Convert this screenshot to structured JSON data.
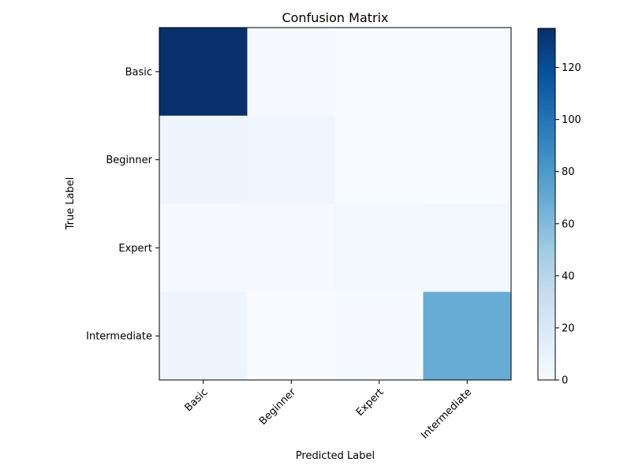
{
  "chart_data": {
    "type": "heatmap",
    "title": "Confusion Matrix",
    "xlabel": "Predicted Label",
    "ylabel": "True Label",
    "x_categories": [
      "Basic",
      "Beginner",
      "Expert",
      "Intermediate"
    ],
    "y_categories": [
      "Basic",
      "Beginner",
      "Expert",
      "Intermediate"
    ],
    "values": [
      [
        135,
        1,
        0,
        0
      ],
      [
        6,
        5,
        0,
        0
      ],
      [
        1,
        1,
        3,
        4
      ],
      [
        6,
        0,
        1,
        69
      ]
    ],
    "colorbar": {
      "range": [
        0,
        135
      ],
      "ticks": [
        0,
        20,
        40,
        60,
        80,
        100,
        120
      ]
    },
    "colormap": "Blues"
  }
}
